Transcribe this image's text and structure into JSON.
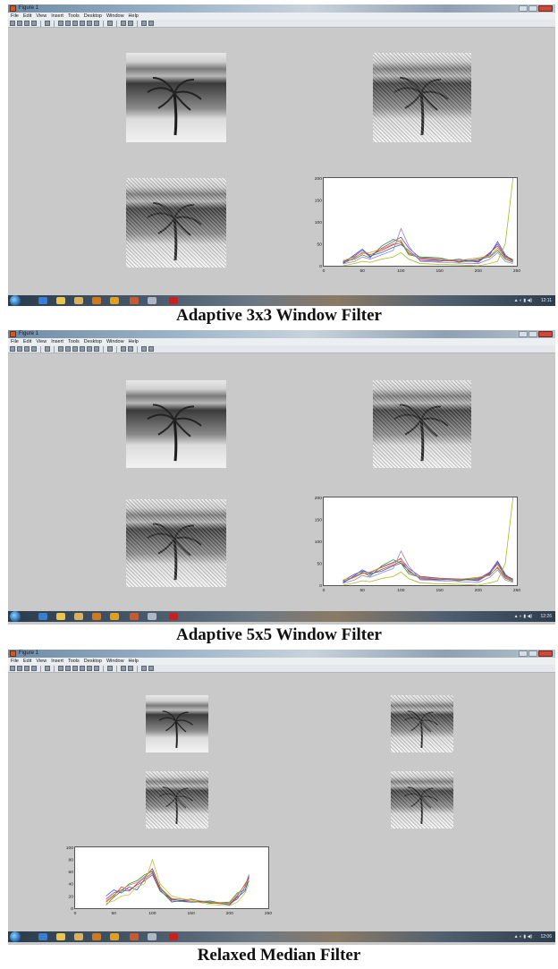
{
  "window": {
    "title": "Figure 1",
    "menu": [
      "File",
      "Edit",
      "View",
      "Insert",
      "Tools",
      "Desktop",
      "Window",
      "Help"
    ]
  },
  "panels": [
    {
      "caption": "Adaptive 3x3 Window Filter",
      "clock": "12:11",
      "chart_data": {
        "type": "line",
        "x": [
          25,
          40,
          50,
          60,
          75,
          90,
          100,
          110,
          125,
          150,
          175,
          200,
          215,
          225,
          235,
          245
        ],
        "series": [
          {
            "values": [
              8,
              22,
              35,
              20,
              40,
              55,
              65,
              40,
              18,
              15,
              12,
              12,
              25,
              55,
              25,
              10
            ],
            "color": "#7b3fbf"
          },
          {
            "values": [
              5,
              18,
              30,
              25,
              35,
              48,
              52,
              30,
              15,
              12,
              10,
              10,
              30,
              45,
              20,
              12
            ],
            "color": "#d23b3b"
          },
          {
            "values": [
              10,
              15,
              25,
              18,
              45,
              60,
              55,
              25,
              20,
              18,
              8,
              15,
              20,
              35,
              15,
              8
            ],
            "color": "#2e8b3f"
          },
          {
            "values": [
              6,
              25,
              38,
              22,
              30,
              42,
              48,
              35,
              12,
              10,
              15,
              8,
              28,
              50,
              22,
              14
            ],
            "color": "#2f5fd0"
          },
          {
            "values": [
              12,
              20,
              28,
              30,
              38,
              50,
              58,
              28,
              16,
              14,
              12,
              18,
              22,
              40,
              18,
              10
            ],
            "color": "#e08a1f"
          },
          {
            "values": [
              4,
              10,
              20,
              15,
              25,
              35,
              85,
              45,
              10,
              8,
              6,
              5,
              15,
              30,
              10,
              5
            ],
            "color": "#9a7fd6"
          },
          {
            "values": [
              0,
              5,
              10,
              8,
              15,
              20,
              30,
              15,
              5,
              3,
              2,
              0,
              5,
              10,
              50,
              200
            ],
            "color": "#a8b820"
          }
        ],
        "xlim": [
          0,
          250
        ],
        "ylim": [
          0,
          200
        ],
        "xticks": [
          0,
          50,
          100,
          150,
          200,
          250
        ],
        "yticks": [
          0,
          50,
          100,
          150,
          200
        ]
      }
    },
    {
      "caption": "Adaptive 5x5 Window Filter",
      "clock": "12:26",
      "chart_data": {
        "type": "line",
        "x": [
          25,
          40,
          50,
          60,
          75,
          90,
          100,
          110,
          125,
          150,
          175,
          200,
          215,
          225,
          235,
          245
        ],
        "series": [
          {
            "values": [
              10,
              25,
              32,
              28,
              42,
              52,
              60,
              38,
              20,
              16,
              14,
              14,
              30,
              55,
              25,
              10
            ],
            "color": "#7b3fbf"
          },
          {
            "values": [
              6,
              20,
              28,
              24,
              36,
              46,
              55,
              32,
              16,
              13,
              12,
              12,
              28,
              48,
              20,
              12
            ],
            "color": "#d23b3b"
          },
          {
            "values": [
              8,
              18,
              30,
              20,
              44,
              58,
              50,
              26,
              18,
              15,
              10,
              16,
              24,
              40,
              16,
              8
            ],
            "color": "#2e8b3f"
          },
          {
            "values": [
              5,
              22,
              35,
              26,
              32,
              44,
              50,
              34,
              14,
              12,
              14,
              10,
              26,
              52,
              22,
              14
            ],
            "color": "#2f5fd0"
          },
          {
            "values": [
              12,
              18,
              26,
              30,
              40,
              50,
              62,
              30,
              18,
              15,
              13,
              18,
              22,
              42,
              18,
              10
            ],
            "color": "#e08a1f"
          },
          {
            "values": [
              4,
              12,
              22,
              18,
              28,
              38,
              78,
              44,
              12,
              10,
              8,
              6,
              18,
              35,
              12,
              6
            ],
            "color": "#9a7fd6"
          },
          {
            "values": [
              0,
              5,
              10,
              8,
              15,
              20,
              30,
              15,
              5,
              3,
              2,
              0,
              5,
              10,
              50,
              200
            ],
            "color": "#a8b820"
          }
        ],
        "xlim": [
          0,
          250
        ],
        "ylim": [
          0,
          200
        ],
        "xticks": [
          0,
          50,
          100,
          150,
          200,
          250
        ],
        "yticks": [
          0,
          50,
          100,
          150,
          200
        ]
      }
    },
    {
      "caption": "Relaxed Median Filter",
      "clock": "12:06",
      "chart_data": {
        "type": "line",
        "x": [
          40,
          50,
          60,
          70,
          80,
          90,
          100,
          110,
          125,
          150,
          175,
          200,
          210,
          220,
          225
        ],
        "series": [
          {
            "values": [
              15,
              25,
              30,
              28,
              40,
              50,
              65,
              35,
              12,
              10,
              10,
              8,
              15,
              35,
              55
            ],
            "color": "#7b3fbf"
          },
          {
            "values": [
              10,
              20,
              35,
              30,
              38,
              45,
              55,
              28,
              14,
              12,
              9,
              6,
              20,
              40,
              50
            ],
            "color": "#d23b3b"
          },
          {
            "values": [
              5,
              18,
              28,
              40,
              45,
              55,
              60,
              30,
              10,
              15,
              8,
              10,
              25,
              30,
              45
            ],
            "color": "#2e8b3f"
          },
          {
            "values": [
              20,
              30,
              25,
              35,
              30,
              48,
              58,
              32,
              15,
              10,
              12,
              5,
              18,
              28,
              52
            ],
            "color": "#2f5fd0"
          },
          {
            "values": [
              8,
              12,
              20,
              22,
              35,
              40,
              80,
              40,
              20,
              12,
              6,
              4,
              10,
              25,
              40
            ],
            "color": "#c7c23a"
          },
          {
            "values": [
              12,
              22,
              30,
              38,
              42,
              52,
              62,
              34,
              16,
              14,
              10,
              8,
              22,
              38,
              48
            ],
            "color": "#e08a1f"
          }
        ],
        "xlim": [
          0,
          250
        ],
        "ylim": [
          0,
          100
        ],
        "xticks": [
          0,
          50,
          100,
          150,
          200,
          250
        ],
        "yticks": [
          0,
          20,
          40,
          60,
          80,
          100
        ]
      }
    }
  ]
}
